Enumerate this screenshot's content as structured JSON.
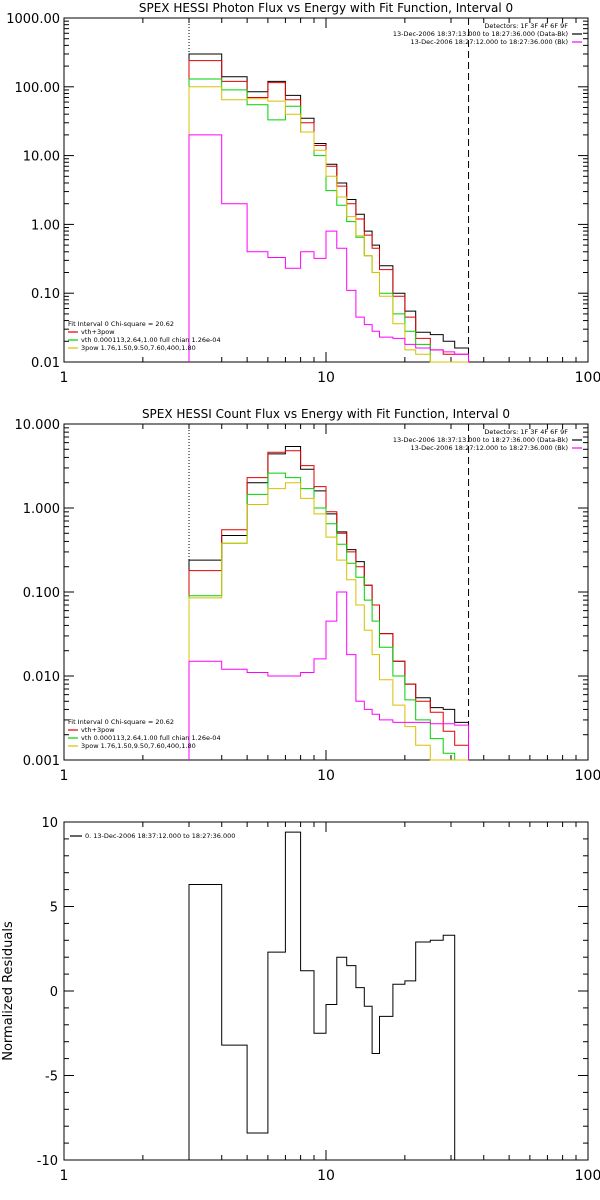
{
  "colors": {
    "axes": "#000000",
    "total": "#000000",
    "model": "#e00000",
    "vth": "#00d000",
    "power": "#d8c000",
    "background": "#ff00ff"
  },
  "chart_data": [
    {
      "type": "line",
      "title": "SPEX HESSI Photon Flux vs Energy with Fit Function, Interval 0",
      "xscale": "log",
      "yscale": "log",
      "xlim": [
        1,
        100
      ],
      "ylim": [
        0.01,
        1000
      ],
      "xticklabels": [
        "1",
        "10",
        "100"
      ],
      "yticklabels": [
        "0.01",
        "0.10",
        "1.00",
        "10.00",
        "100.00",
        "1000.00"
      ],
      "legend_topright": [
        "Detectors: 1F 3F 4F 6F 9F",
        "13-Dec-2006 18:37:13.000 to 18:27:36.000 (Data-Bk)",
        "13-Dec-2006 18:27:12.000 to 18:27:36.000 (Bk)"
      ],
      "legend_bottomleft": [
        "Fit Interval 0   Chi-square = 20.62",
        "vth+3pow",
        "vth 0.000113,2.64,1.00  full chian 1.26e-04",
        "3pow 1.76,1.50,9.50,7.60,400,1.80"
      ],
      "vlines": {
        "dotted": 3,
        "dashed": 35
      },
      "edges": [
        3,
        4,
        5,
        6,
        7,
        8,
        9,
        10,
        11,
        12,
        13,
        14,
        15,
        16,
        18,
        20,
        22,
        25,
        28,
        31,
        35
      ],
      "series": [
        {
          "name": "Data-Bk",
          "color_key": "total",
          "values": [
            300,
            140,
            85,
            120,
            75,
            35,
            15,
            7.5,
            4,
            2.3,
            1.4,
            0.8,
            0.5,
            0.25,
            0.1,
            0.055,
            0.027,
            0.025,
            0.02,
            0.016
          ]
        },
        {
          "name": "vth+3pow",
          "color_key": "model",
          "values": [
            240,
            120,
            70,
            115,
            65,
            30,
            14,
            7,
            3.6,
            2.0,
            1.2,
            0.7,
            0.45,
            0.22,
            0.09,
            0.045,
            0.022,
            0.015,
            0.013,
            0.013
          ]
        },
        {
          "name": "vth",
          "color_key": "vth",
          "values": [
            130,
            90,
            55,
            33,
            52,
            22,
            10,
            3.1,
            1.9,
            1.1,
            0.65,
            0.35,
            0.2,
            0.1,
            0.05,
            0.028,
            0.018,
            0.009,
            0.007,
            0.006
          ]
        },
        {
          "name": "3pow",
          "color_key": "power",
          "values": [
            100,
            65,
            67,
            62,
            40,
            22,
            12,
            5,
            2.5,
            1.3,
            0.68,
            0.35,
            0.2,
            0.09,
            0.036,
            0.015,
            0.013,
            0.009,
            0.007,
            0.006
          ]
        },
        {
          "name": "Bk",
          "color_key": "background",
          "values": [
            20,
            2,
            0.4,
            0.33,
            0.23,
            0.4,
            0.32,
            0.8,
            0.45,
            0.11,
            0.045,
            0.035,
            0.028,
            0.023,
            0.022,
            0.018,
            0.016,
            0.015,
            0.014,
            0.013
          ]
        }
      ]
    },
    {
      "type": "line",
      "title": "SPEX HESSI Count Flux vs Energy with Fit Function, Interval 0",
      "xscale": "log",
      "yscale": "log",
      "xlim": [
        1,
        100
      ],
      "ylim": [
        0.001,
        10
      ],
      "xticklabels": [
        "1",
        "10",
        "100"
      ],
      "yticklabels": [
        "0.001",
        "0.010",
        "0.100",
        "1.000",
        "10.000"
      ],
      "legend_topright": [
        "Detectors: 1F 3F 4F 6F 9F",
        "13-Dec-2006 18:37:13.000 to 18:27:36.000 (Data-Bk)",
        "13-Dec-2006 18:27:12.000 to 18:27:36.000 (Bk)"
      ],
      "legend_bottomleft": [
        "Fit Interval 0   Chi-square = 20.62",
        "vth+3pow",
        "vth 0.000113,2.64,1.00  full chian 1.26e-04",
        "3pow 1.76,1.50,9.50,7.60,400,1.80"
      ],
      "vlines": {
        "dotted": 3,
        "dashed": 35
      },
      "edges": [
        3,
        4,
        5,
        6,
        7,
        8,
        9,
        10,
        11,
        12,
        13,
        14,
        15,
        16,
        18,
        20,
        22,
        25,
        28,
        31,
        35
      ],
      "series": [
        {
          "name": "Data-Bk",
          "color_key": "total",
          "values": [
            0.24,
            0.47,
            2.0,
            4.4,
            5.4,
            2.9,
            1.6,
            0.85,
            0.52,
            0.32,
            0.23,
            0.12,
            0.07,
            0.032,
            0.015,
            0.008,
            0.0055,
            0.0042,
            0.004,
            0.0028
          ]
        },
        {
          "name": "vth+3pow",
          "color_key": "model",
          "values": [
            0.18,
            0.55,
            2.3,
            4.6,
            4.8,
            3.2,
            1.8,
            0.9,
            0.5,
            0.3,
            0.2,
            0.12,
            0.07,
            0.032,
            0.015,
            0.008,
            0.005,
            0.0037,
            0.0022,
            0.0015
          ]
        },
        {
          "name": "vth",
          "color_key": "vth",
          "values": [
            0.09,
            0.38,
            1.45,
            2.6,
            2.3,
            1.7,
            1.0,
            0.65,
            0.37,
            0.22,
            0.15,
            0.08,
            0.045,
            0.022,
            0.01,
            0.0052,
            0.003,
            0.0018,
            0.0012,
            0.0008
          ]
        },
        {
          "name": "3pow",
          "color_key": "power",
          "values": [
            0.085,
            0.38,
            1.1,
            1.7,
            2.0,
            1.3,
            0.85,
            0.45,
            0.24,
            0.14,
            0.07,
            0.035,
            0.018,
            0.009,
            0.0045,
            0.0025,
            0.0015,
            0.001,
            0.0008,
            0.0007
          ]
        },
        {
          "name": "Bk",
          "color_key": "background",
          "values": [
            0.015,
            0.012,
            0.011,
            0.01,
            0.01,
            0.011,
            0.016,
            0.045,
            0.1,
            0.018,
            0.005,
            0.004,
            0.0035,
            0.003,
            0.0028,
            0.0028,
            0.0028,
            0.0027,
            0.0027,
            0.0026
          ]
        }
      ]
    },
    {
      "type": "line",
      "title": "",
      "xscale": "log",
      "yscale": "linear",
      "xlim": [
        1,
        100
      ],
      "ylim": [
        -10,
        10
      ],
      "ylabel": "Normalized Residuals",
      "xticklabels": [
        "1",
        "10",
        "100"
      ],
      "yticks": [
        -10,
        -5,
        0,
        5,
        10
      ],
      "yticklabels": [
        "-10",
        "-5",
        "0",
        "5",
        "10"
      ],
      "legend_topleft": [
        "0. 13-Dec-2006 18:37:12.000 to 18:27:36.000"
      ],
      "edges": [
        3,
        4,
        5,
        6,
        7,
        8,
        9,
        10,
        11,
        12,
        13,
        14,
        15,
        16,
        18,
        20,
        22,
        25,
        28,
        31,
        35
      ],
      "series": [
        {
          "name": "",
          "color_key": "total",
          "values": [
            6.3,
            -3.2,
            -8.4,
            2.3,
            9.4,
            1.2,
            -2.5,
            -0.8,
            2.0,
            1.5,
            0.2,
            -0.9,
            -3.7,
            -1.5,
            0.4,
            0.6,
            2.9,
            3.0,
            3.3,
            -10
          ]
        }
      ]
    }
  ]
}
